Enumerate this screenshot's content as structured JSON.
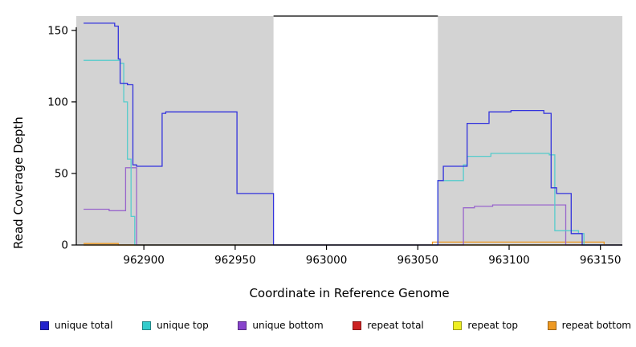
{
  "chart_data": {
    "type": "line",
    "title": "",
    "xlabel": "Coordinate in Reference Genome",
    "ylabel": "Read Coverage Depth",
    "xlim": [
      962863,
      963162
    ],
    "ylim": [
      0,
      160
    ],
    "xticks": [
      962900,
      962950,
      963000,
      963050,
      963100,
      963150
    ],
    "yticks": [
      0,
      50,
      100,
      150
    ],
    "grid": false,
    "legend_position": "bottom",
    "plot_background": "#d3d3d3",
    "gap_region": {
      "x0": 962971,
      "x1": 963061,
      "color": "#ffffff"
    },
    "series": [
      {
        "name": "repeat total",
        "color": "#cc2222",
        "points": [
          [
            962867,
            0
          ]
        ]
      },
      {
        "name": "repeat top",
        "color": "#eeee22",
        "points": [
          [
            962867,
            0
          ]
        ]
      },
      {
        "name": "repeat bottom",
        "color": "#ee9922",
        "points": [
          [
            962867,
            1
          ],
          [
            962886,
            0
          ],
          [
            963058,
            2
          ],
          [
            963152,
            0
          ]
        ]
      },
      {
        "name": "unique bottom",
        "color": "#9966cc",
        "points": [
          [
            962867,
            25
          ],
          [
            962881,
            24
          ],
          [
            962890,
            54
          ],
          [
            962896,
            0
          ],
          [
            963075,
            26
          ],
          [
            963081,
            27
          ],
          [
            963091,
            28
          ],
          [
            963131,
            0
          ]
        ]
      },
      {
        "name": "unique top",
        "color": "#55cccc",
        "points": [
          [
            962867,
            129
          ],
          [
            962884,
            129
          ],
          [
            962887,
            127
          ],
          [
            962889,
            100
          ],
          [
            962891,
            60
          ],
          [
            962893,
            20
          ],
          [
            962895,
            0
          ],
          [
            963061,
            45
          ],
          [
            963075,
            56
          ],
          [
            963077,
            62
          ],
          [
            963090,
            64
          ],
          [
            963122,
            63
          ],
          [
            963125,
            10
          ],
          [
            963138,
            8
          ],
          [
            963141,
            0
          ]
        ]
      },
      {
        "name": "unique total",
        "color": "#3333dd",
        "points": [
          [
            962867,
            155
          ],
          [
            962884,
            153
          ],
          [
            962886,
            130
          ],
          [
            962887,
            113
          ],
          [
            962891,
            112
          ],
          [
            962894,
            56
          ],
          [
            962896,
            55
          ],
          [
            962910,
            92
          ],
          [
            962912,
            93
          ],
          [
            962951,
            36
          ],
          [
            962971,
            0
          ],
          [
            963061,
            45
          ],
          [
            963064,
            55
          ],
          [
            963077,
            85
          ],
          [
            963089,
            93
          ],
          [
            963101,
            94
          ],
          [
            963119,
            92
          ],
          [
            963123,
            40
          ],
          [
            963126,
            36
          ],
          [
            963134,
            8
          ],
          [
            963140,
            0
          ]
        ]
      }
    ]
  },
  "legend": {
    "items": [
      {
        "label": "unique total",
        "color": "#2222cc"
      },
      {
        "label": "unique top",
        "color": "#33cccc"
      },
      {
        "label": "unique bottom",
        "color": "#8844cc"
      },
      {
        "label": "repeat total",
        "color": "#cc2222"
      },
      {
        "label": "repeat top",
        "color": "#eeee22"
      },
      {
        "label": "repeat bottom",
        "color": "#ee9922"
      }
    ]
  }
}
